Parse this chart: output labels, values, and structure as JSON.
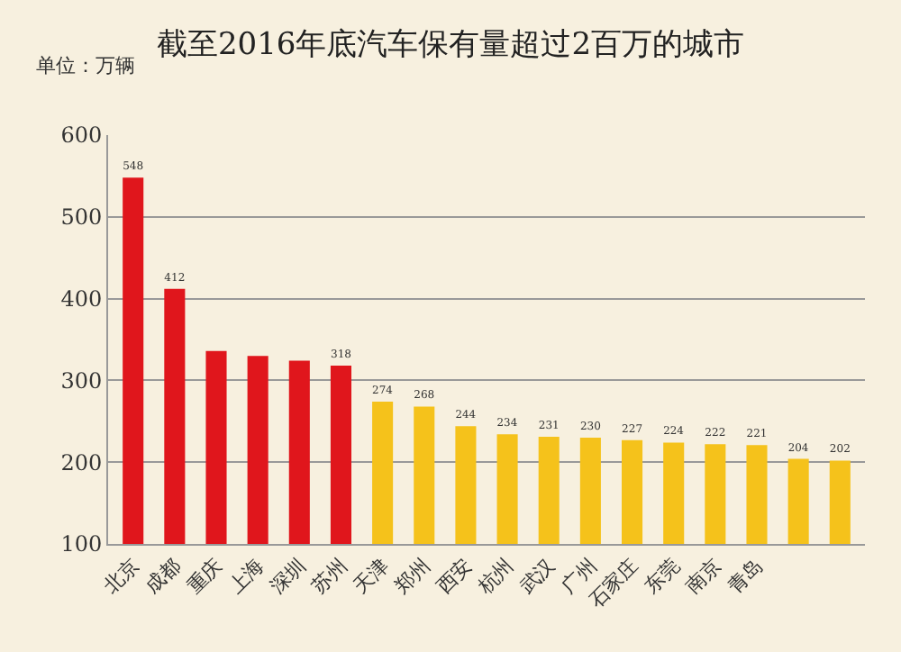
{
  "chart_data": {
    "type": "bar",
    "title": "截至2016年底汽车保有量超过2百万的城市",
    "annotations": [
      "单位：万辆"
    ],
    "categories": [
      "北京",
      "成都",
      "重庆",
      "上海",
      "深圳",
      "苏州",
      "天津",
      "郑州",
      "西安",
      "杭州",
      "武汉",
      "广州",
      "石家庄",
      "东莞",
      "南京",
      "青岛",
      null,
      null
    ],
    "values": [
      548,
      412,
      336,
      330,
      324,
      318,
      274,
      268,
      244,
      234,
      231,
      230,
      227,
      224,
      222,
      221,
      204,
      202
    ],
    "value_labels": [
      "548",
      "412",
      null,
      null,
      null,
      "318",
      "274",
      "268",
      "244",
      "234",
      "231",
      "230",
      "227",
      "224",
      "222",
      "221",
      "204",
      "202"
    ],
    "colors": [
      "#e0161c",
      "#e0161c",
      "#e0161c",
      "#e0161c",
      "#e0161c",
      "#e0161c",
      "#f5c21b",
      "#f5c21b",
      "#f5c21b",
      "#f5c21b",
      "#f5c21b",
      "#f5c21b",
      "#f5c21b",
      "#f5c21b",
      "#f5c21b",
      "#f5c21b",
      "#f5c21b",
      "#f5c21b"
    ],
    "ylim": [
      100,
      600
    ],
    "yticks": [
      100,
      200,
      300,
      400,
      500,
      600
    ],
    "grid": "y"
  }
}
